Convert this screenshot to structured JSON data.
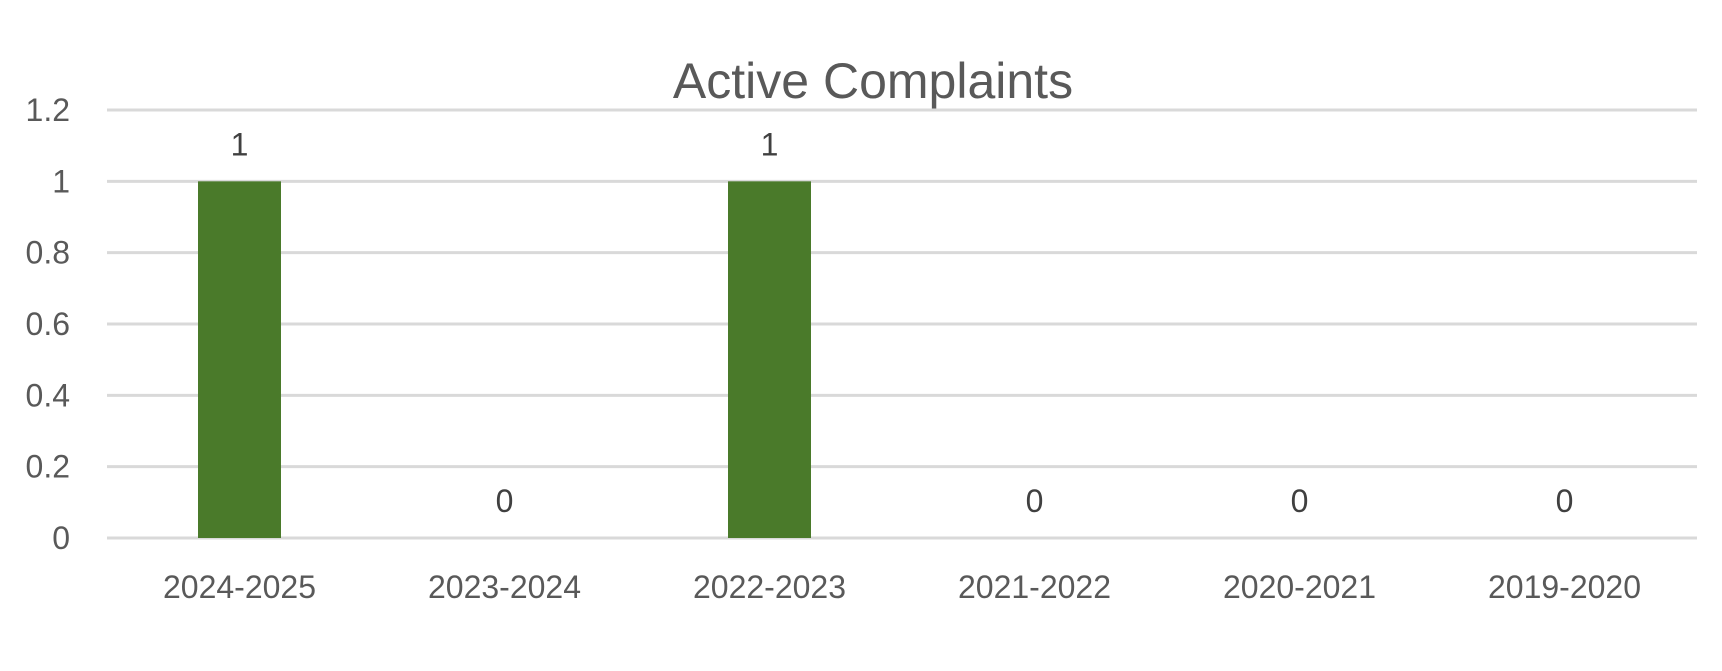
{
  "chart_data": {
    "type": "bar",
    "title": "Active Complaints",
    "categories": [
      "2024-2025",
      "2023-2024",
      "2022-2023",
      "2021-2022",
      "2020-2021",
      "2019-2020"
    ],
    "values": [
      1,
      0,
      1,
      0,
      0,
      0
    ],
    "ylim": [
      0,
      1.2
    ],
    "yticks": [
      "0",
      "0.2",
      "0.4",
      "0.6",
      "0.8",
      "1",
      "1.2"
    ],
    "data_labels": [
      "1",
      "0",
      "1",
      "0",
      "0",
      "0"
    ],
    "xlabel": "",
    "ylabel": "",
    "grid": true,
    "legend": "none",
    "colors": {
      "bar": "#4a7a2a"
    }
  }
}
